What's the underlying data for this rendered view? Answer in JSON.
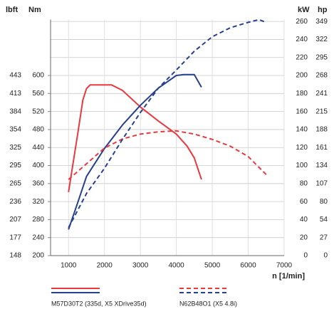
{
  "chart_data": {
    "type": "line",
    "xlabel": "n [1/min]",
    "ylabel": "Nm",
    "y3label": "lbft",
    "y2label": "kW",
    "y4label": "hp",
    "xlim": [
      500,
      7000
    ],
    "xticks": [
      1000,
      2000,
      3000,
      4000,
      5000,
      6000,
      7000
    ],
    "ylim": [
      200,
      740
    ],
    "yticks": [
      200,
      240,
      280,
      320,
      360,
      400,
      440,
      480,
      520,
      560,
      600
    ],
    "y3ticks": [
      {
        "value": 200,
        "label": "148"
      },
      {
        "value": 240,
        "label": "177"
      },
      {
        "value": 280,
        "label": "207"
      },
      {
        "value": 320,
        "label": "236"
      },
      {
        "value": 360,
        "label": "265"
      },
      {
        "value": 400,
        "label": "295"
      },
      {
        "value": 440,
        "label": "325"
      },
      {
        "value": 480,
        "label": "354"
      },
      {
        "value": 520,
        "label": "384"
      },
      {
        "value": 560,
        "label": "413"
      },
      {
        "value": 600,
        "label": "443"
      }
    ],
    "y2lim": [
      0,
      270
    ],
    "y2ticks": [
      0,
      20,
      40,
      60,
      80,
      100,
      120,
      140,
      160,
      180,
      200,
      220,
      240,
      260
    ],
    "y4ticks": [
      {
        "value": 0,
        "label": "0"
      },
      {
        "value": 20,
        "label": "27"
      },
      {
        "value": 40,
        "label": "54"
      },
      {
        "value": 60,
        "label": "80"
      },
      {
        "value": 80,
        "label": "107"
      },
      {
        "value": 100,
        "label": "134"
      },
      {
        "value": 120,
        "label": "161"
      },
      {
        "value": 140,
        "label": "188"
      },
      {
        "value": 160,
        "label": "215"
      },
      {
        "value": 180,
        "label": "241"
      },
      {
        "value": 200,
        "label": "268"
      },
      {
        "value": 220,
        "label": "295"
      },
      {
        "value": 240,
        "label": "322"
      },
      {
        "value": 260,
        "label": "349"
      }
    ],
    "grid": true,
    "series": [
      {
        "color": "#e8393f",
        "dashed": false,
        "x": [
          1000,
          1250,
          1400,
          1500,
          1600,
          2000,
          2200,
          2500,
          3000,
          3500,
          4000,
          4300,
          4500,
          4700
        ],
        "values": [
          341,
          467,
          546,
          571,
          579,
          579,
          579,
          567,
          530,
          499,
          470,
          443,
          417,
          369
        ]
      },
      {
        "color": "#27408e",
        "dashed": false,
        "axis": "y2",
        "x": [
          1000,
          1250,
          1500,
          2000,
          2500,
          3000,
          3500,
          4000,
          4200,
          4500,
          4700
        ],
        "values": [
          29,
          58,
          88,
          119,
          145,
          167,
          186,
          200,
          201,
          201,
          187
        ]
      },
      {
        "color": "#e8393f",
        "dashed": true,
        "x": [
          1000,
          1500,
          2000,
          2500,
          3000,
          3500,
          4000,
          4500,
          5000,
          5500,
          6000,
          6500
        ],
        "values": [
          369,
          404,
          439,
          459,
          470,
          475,
          477,
          470,
          458,
          443,
          420,
          380
        ]
      },
      {
        "color": "#27408e",
        "dashed": true,
        "axis": "y2",
        "x": [
          1000,
          1500,
          2000,
          2500,
          3000,
          3500,
          4000,
          4500,
          5000,
          5500,
          6000,
          6300,
          6500
        ],
        "values": [
          31,
          69,
          97,
          129,
          159,
          186,
          206,
          227,
          243,
          253,
          259,
          262,
          259
        ]
      }
    ],
    "legend": [
      {
        "name": "M57D30T2 (335d, X5 XDrive35d)",
        "colors": [
          "#e8393f",
          "#27408e"
        ],
        "dashed": false
      },
      {
        "name": "N62B48O1 (X5 4.8i)",
        "colors": [
          "#e8393f",
          "#27408e"
        ],
        "dashed": true
      }
    ]
  }
}
